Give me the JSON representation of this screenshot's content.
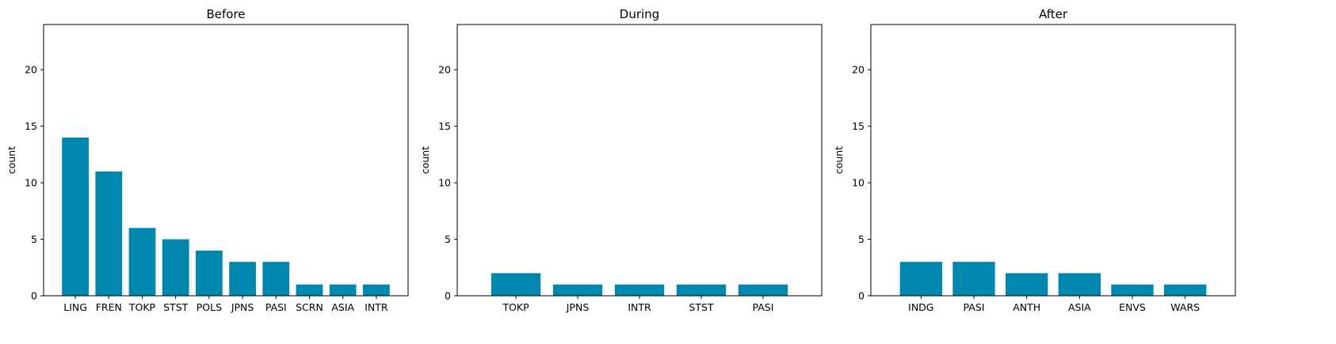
{
  "chart_data": [
    {
      "type": "bar",
      "title": "Before",
      "xlabel": "",
      "ylabel": "count",
      "categories": [
        "LING",
        "FREN",
        "TOKP",
        "STST",
        "POLS",
        "JPNS",
        "PASI",
        "SCRN",
        "ASIA",
        "INTR"
      ],
      "values": [
        14,
        11,
        6,
        5,
        4,
        3,
        3,
        1,
        1,
        1
      ],
      "ylim": [
        0,
        24
      ],
      "yticks": [
        0,
        5,
        10,
        15,
        20
      ],
      "color": "#0087ad",
      "grid": false
    },
    {
      "type": "bar",
      "title": "During",
      "xlabel": "",
      "ylabel": "count",
      "categories": [
        "TOKP",
        "JPNS",
        "INTR",
        "STST",
        "PASI"
      ],
      "values": [
        2,
        1,
        1,
        1,
        1
      ],
      "ylim": [
        0,
        24
      ],
      "yticks": [
        0,
        5,
        10,
        15,
        20
      ],
      "color": "#0087ad",
      "grid": false
    },
    {
      "type": "bar",
      "title": "After",
      "xlabel": "",
      "ylabel": "count",
      "categories": [
        "INDG",
        "PASI",
        "ANTH",
        "ASIA",
        "ENVS",
        "WARS"
      ],
      "values": [
        3,
        3,
        2,
        2,
        1,
        1
      ],
      "ylim": [
        0,
        24
      ],
      "yticks": [
        0,
        5,
        10,
        15,
        20
      ],
      "color": "#0087ad",
      "grid": false
    }
  ]
}
